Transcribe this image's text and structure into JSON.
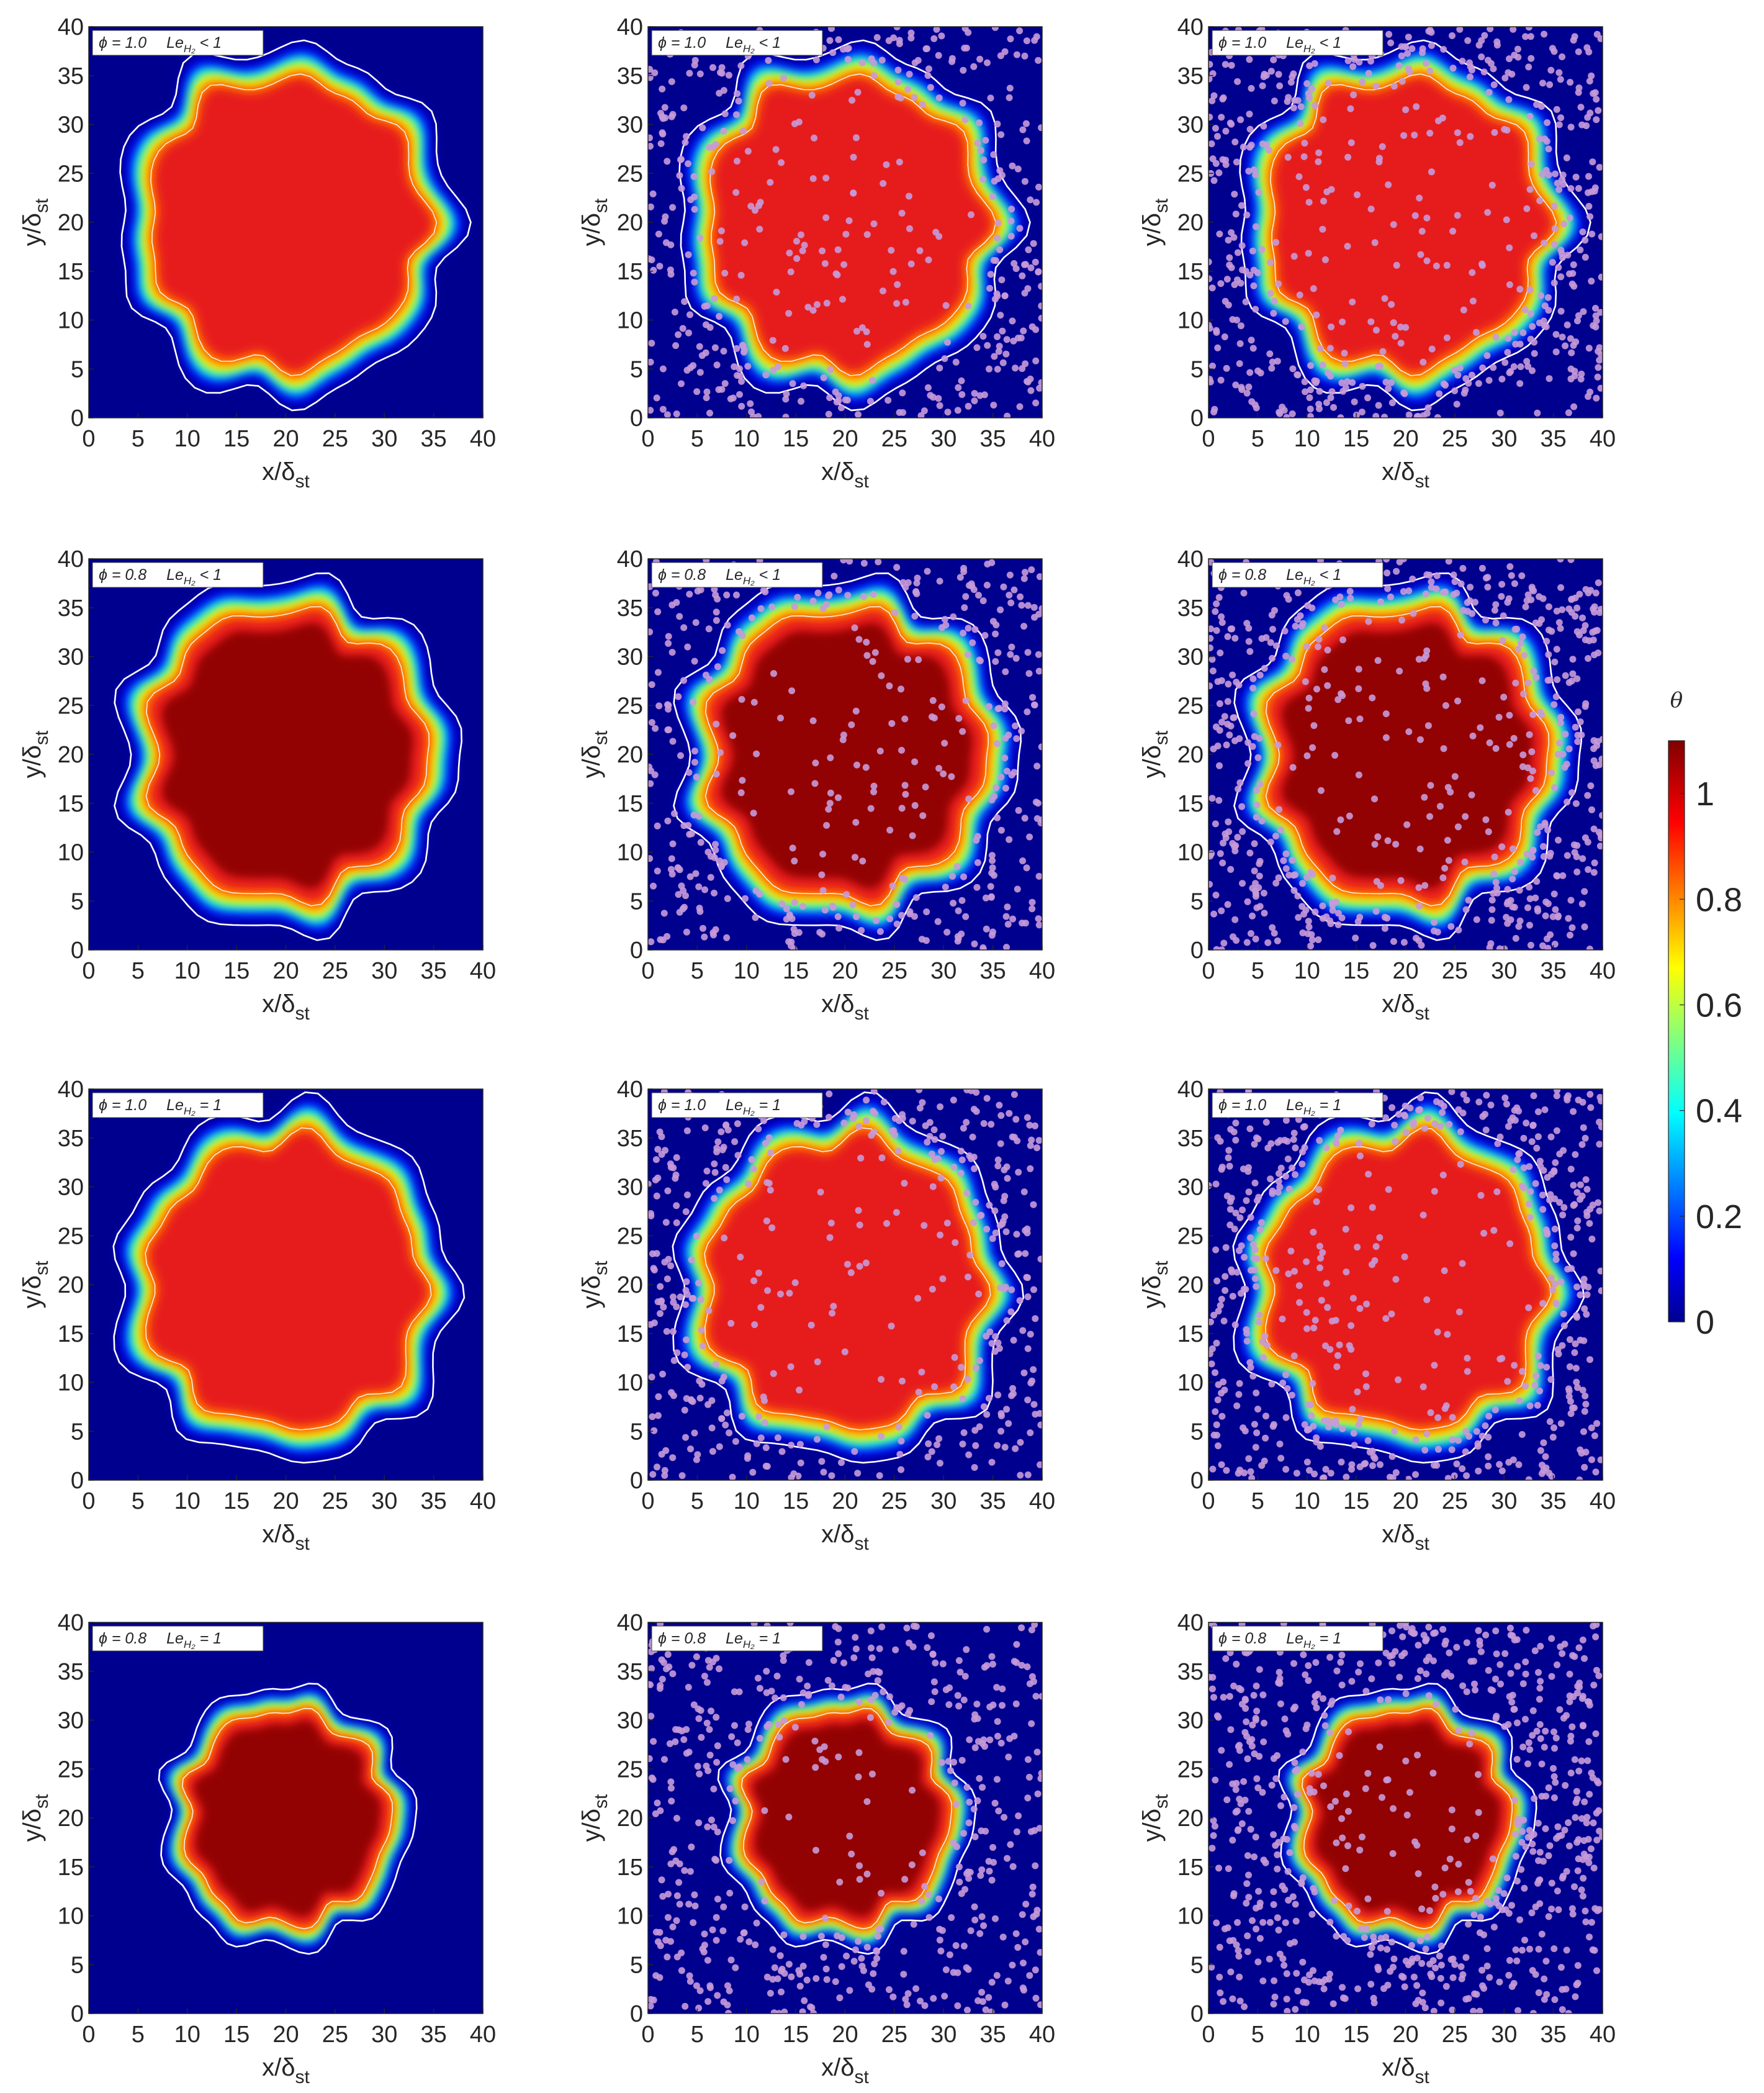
{
  "chart_data": {
    "type": "heatmap",
    "layout": "4 rows x 3 columns of contour maps with particle overlays in columns 2 and 3",
    "xlabel": {
      "main": "x/δ",
      "sub": "st"
    },
    "ylabel": {
      "main": "y/δ",
      "sub": "st"
    },
    "xlim": [
      0,
      40
    ],
    "ylim": [
      0,
      40
    ],
    "xticks": [
      0,
      5,
      10,
      15,
      20,
      25,
      30,
      35,
      40
    ],
    "yticks": [
      0,
      5,
      10,
      15,
      20,
      25,
      30,
      35,
      40
    ],
    "colorbar": {
      "title": "θ",
      "range": [
        0,
        1.1
      ],
      "ticks": [
        0,
        0.2,
        0.4,
        0.6,
        0.8,
        1
      ],
      "tick_labels": [
        "0",
        "0.2",
        "0.4",
        "0.6",
        "0.8",
        "1"
      ],
      "colormap": "jet"
    },
    "colors": {
      "background": "#00008f",
      "flame": "#e61a1a",
      "flame_core_rich": "#8b0000",
      "particles": "#c79ad8",
      "isoline": "#ffffff"
    },
    "rows": [
      {
        "phi": "ϕ = 1.0",
        "le": "Le",
        "le_sub": "H₂",
        "le_rel": "< 1",
        "core": "red"
      },
      {
        "phi": "ϕ = 0.8",
        "le": "Le",
        "le_sub": "H₂",
        "le_rel": "< 1",
        "core": "darkred"
      },
      {
        "phi": "ϕ = 1.0",
        "le": "Le",
        "le_sub": "H₂",
        "le_rel": "= 1",
        "core": "red"
      },
      {
        "phi": "ϕ = 0.8",
        "le": "Le",
        "le_sub": "H₂",
        "le_rel": "= 1",
        "core": "darkred"
      }
    ],
    "columns": [
      {
        "particles": false
      },
      {
        "particles": true,
        "density": "medium"
      },
      {
        "particles": true,
        "density": "high"
      }
    ]
  }
}
